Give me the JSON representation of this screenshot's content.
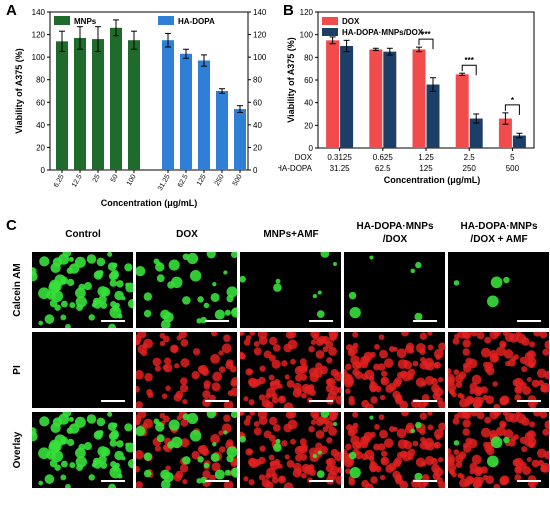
{
  "panels": {
    "a_label": "A",
    "b_label": "B",
    "c_label": "C"
  },
  "chart_data": [
    {
      "type": "bar",
      "panel": "A",
      "ylabel": "Viability of A375 (%)",
      "xlabel": "Concentration (μg/mL)",
      "ylim": [
        0,
        140
      ],
      "yticks": [
        0,
        20,
        40,
        60,
        80,
        100,
        120,
        140
      ],
      "series": [
        {
          "name": "MNPs",
          "color": "#1f6b2b",
          "categories": [
            "6.25",
            "12.5",
            "25",
            "50",
            "100"
          ],
          "values": [
            114,
            117,
            116,
            126,
            115
          ],
          "errors": [
            9,
            10,
            11,
            7,
            8
          ]
        },
        {
          "name": "HA-DOPA",
          "color": "#2f7fd6",
          "categories": [
            "31.25",
            "62.5",
            "125",
            "250",
            "500"
          ],
          "values": [
            115,
            103,
            97,
            70,
            54
          ],
          "errors": [
            6,
            4,
            5,
            2,
            3
          ]
        }
      ]
    },
    {
      "type": "bar",
      "panel": "B",
      "ylabel": "Viability of A375 (%)",
      "xlabel": "Concentration (μg/mL)",
      "ylim": [
        0,
        120
      ],
      "yticks": [
        0,
        20,
        40,
        60,
        80,
        100,
        120
      ],
      "row_labels": [
        "DOX",
        "HA-DOPA"
      ],
      "categories_dox": [
        "0.3125",
        "0.625",
        "1.25",
        "2.5",
        "5"
      ],
      "categories_hadopa": [
        "31.25",
        "62.5",
        "125",
        "250",
        "500"
      ],
      "series": [
        {
          "name": "DOX",
          "color": "#f24b4b",
          "values": [
            95,
            87,
            87,
            65,
            26
          ],
          "errors": [
            3,
            1,
            2,
            1,
            5
          ]
        },
        {
          "name": "HA-DOPA·MNPs/DOX",
          "color": "#1b3f66",
          "values": [
            90,
            85,
            56,
            26,
            11
          ],
          "errors": [
            5,
            3,
            6,
            4,
            2
          ]
        }
      ],
      "significance": [
        {
          "group": 2,
          "mark": "***"
        },
        {
          "group": 3,
          "mark": "***"
        },
        {
          "group": 4,
          "mark": "*"
        }
      ]
    }
  ],
  "microscopy": {
    "columns": [
      "Control",
      "DOX",
      "MNPs+AMF",
      "HA-DOPA·MNPs\n/DOX",
      "HA-DOPA·MNPs\n/DOX + AMF"
    ],
    "rows": [
      "Calcein AM",
      "PI",
      "Overlay"
    ],
    "green_density": [
      0.95,
      0.45,
      0.12,
      0.08,
      0.05
    ],
    "red_density": [
      0.0,
      0.55,
      0.85,
      0.9,
      0.95
    ],
    "green_color": "#36e03a",
    "red_color": "#e02020"
  }
}
